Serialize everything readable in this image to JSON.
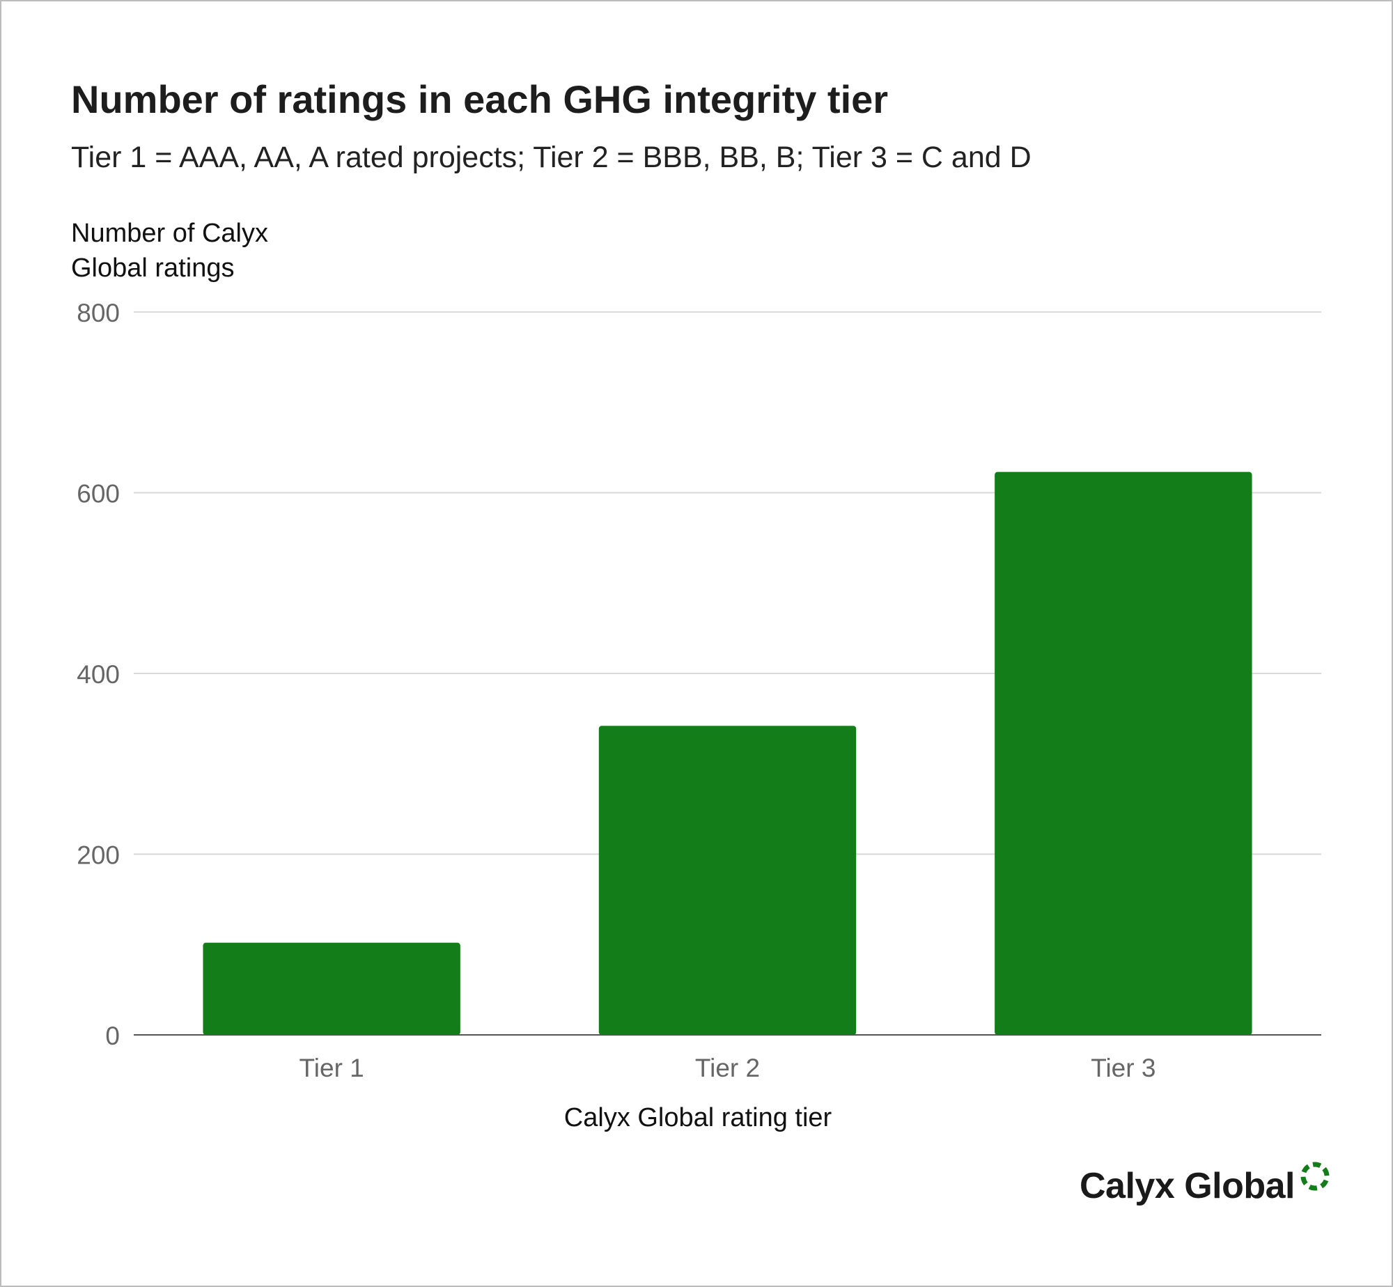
{
  "colors": {
    "bar": "#137d19",
    "grid": "#d9d9d9",
    "axis": "#555555",
    "tick_text": "#666666",
    "logo_accent": "#137d19"
  },
  "chart_data": {
    "type": "bar",
    "title": "Number of ratings in each GHG integrity tier",
    "subtitle": "Tier 1 = AAA, AA, A rated projects; Tier 2 = BBB, BB, B; Tier 3 = C and D",
    "ylabel_lines": [
      "Number of Calyx",
      "Global ratings"
    ],
    "xlabel": "Calyx Global rating tier",
    "categories": [
      "Tier 1",
      "Tier 2",
      "Tier 3"
    ],
    "values": [
      102,
      342,
      623
    ],
    "ylim": [
      0,
      800
    ],
    "yticks": [
      0,
      200,
      400,
      600,
      800
    ],
    "grid": true,
    "legend": "none"
  },
  "brand": {
    "logo_text": "Calyx Global",
    "logo_icon": "dashed-ring-icon"
  }
}
